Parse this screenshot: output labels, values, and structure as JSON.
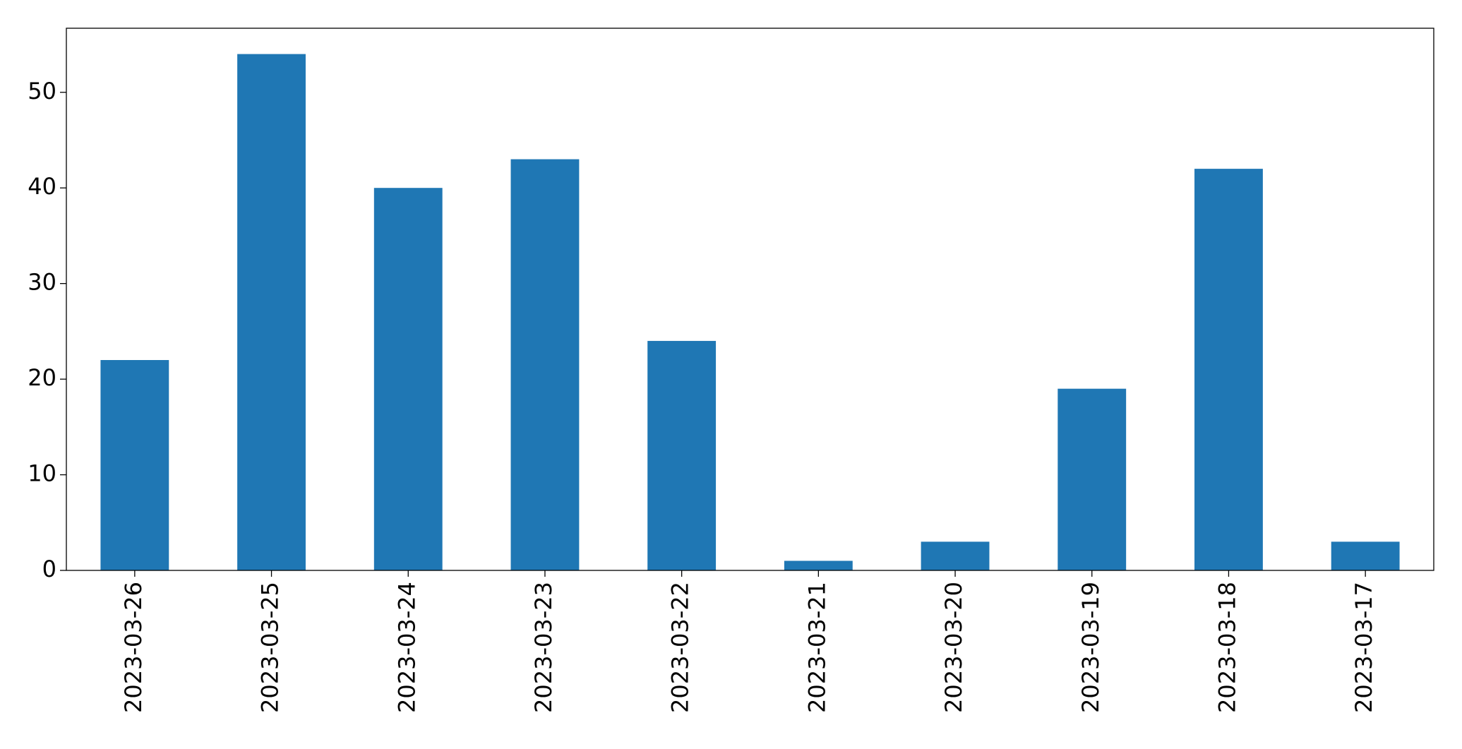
{
  "chart_data": {
    "type": "bar",
    "categories": [
      "2023-03-26",
      "2023-03-25",
      "2023-03-24",
      "2023-03-23",
      "2023-03-22",
      "2023-03-21",
      "2023-03-20",
      "2023-03-19",
      "2023-03-18",
      "2023-03-17"
    ],
    "values": [
      22,
      54,
      40,
      43,
      24,
      1,
      3,
      19,
      42,
      3
    ],
    "color": "#1f77b4",
    "ylim": [
      0,
      56.7
    ],
    "yticks": [
      0,
      10,
      20,
      30,
      40,
      50
    ],
    "grid": false
  }
}
